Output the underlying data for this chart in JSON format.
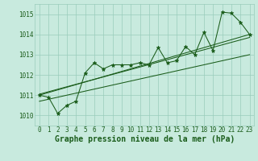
{
  "xlabel": "Graphe pression niveau de la mer (hPa)",
  "ylim": [
    1009.5,
    1015.5
  ],
  "xlim": [
    -0.5,
    23.5
  ],
  "yticks": [
    1010,
    1011,
    1012,
    1013,
    1014,
    1015
  ],
  "xticks": [
    0,
    1,
    2,
    3,
    4,
    5,
    6,
    7,
    8,
    9,
    10,
    11,
    12,
    13,
    14,
    15,
    16,
    17,
    18,
    19,
    20,
    21,
    22,
    23
  ],
  "xtick_labels": [
    "0",
    "1",
    "2",
    "3",
    "4",
    "5",
    "6",
    "7",
    "8",
    "9",
    "10",
    "11",
    "12",
    "13",
    "14",
    "15",
    "16",
    "17",
    "18",
    "19",
    "20",
    "21",
    "22",
    "23"
  ],
  "data_y": [
    1011.0,
    1010.9,
    1010.1,
    1010.5,
    1010.7,
    1012.1,
    1012.6,
    1012.3,
    1012.5,
    1012.5,
    1012.5,
    1012.6,
    1012.5,
    1013.35,
    1012.6,
    1012.7,
    1013.4,
    1013.0,
    1014.1,
    1013.2,
    1015.1,
    1015.05,
    1014.6,
    1014.0
  ],
  "line_color": "#1a5c1a",
  "marker_color": "#1a5c1a",
  "bg_color": "#c8eade",
  "grid_color": "#99ccbb",
  "trend_line1_y": [
    1011.0,
    1014.0
  ],
  "trend_line2_y": [
    1010.7,
    1013.0
  ],
  "trend_line3_y": [
    1011.05,
    1013.85
  ],
  "tick_fontsize": 5.5,
  "xlabel_fontsize": 7.0,
  "marker": "*",
  "marker_size": 3.5,
  "linewidth": 0.75
}
